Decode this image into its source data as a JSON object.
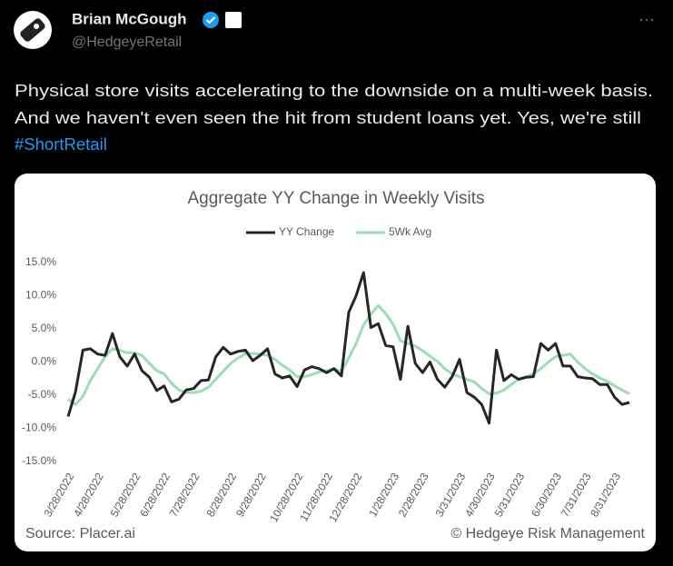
{
  "tweet": {
    "name": "Brian McGough",
    "handle": "@HedgeyeRetail",
    "menu": "···",
    "text_lines": [
      "Physical store visits accelerating to the downside on a multi-week basis.",
      "And we haven't even seen the hit from student loans yet. Yes, we're still"
    ],
    "hashtag": "#ShortRetail"
  },
  "chart_data": {
    "type": "line",
    "title": "Aggregate YY Change in Weekly Visits",
    "source": "Source: Placer.ai",
    "credit": "© Hedgeye Risk Management",
    "categories": [
      "3/28/2022",
      null,
      null,
      null,
      "4/28/2022",
      null,
      null,
      null,
      null,
      "5/28/2022",
      null,
      null,
      null,
      "6/28/2022",
      null,
      null,
      null,
      "7/28/2022",
      null,
      null,
      null,
      null,
      "8/28/2022",
      null,
      null,
      null,
      "9/28/2022",
      null,
      null,
      null,
      null,
      "10/28/2022",
      null,
      null,
      null,
      "11/28/2022",
      null,
      null,
      null,
      "12/28/2022",
      null,
      null,
      null,
      null,
      "1/28/2023",
      null,
      null,
      null,
      "2/28/2023",
      null,
      null,
      null,
      null,
      "3/31/2023",
      null,
      null,
      null,
      "4/30/2023",
      null,
      null,
      null,
      "5/31/2023",
      null,
      null,
      null,
      null,
      "6/30/2023",
      null,
      null,
      null,
      "7/31/2023",
      null,
      null,
      null,
      "8/31/2023",
      null,
      null
    ],
    "series": [
      {
        "name": "YY Change",
        "color": "#262626",
        "values": [
          -8.2,
          -4.5,
          1.8,
          2.0,
          1.2,
          1.0,
          4.3,
          0.8,
          -0.6,
          1.2,
          -1.3,
          -2.3,
          -4.3,
          -3.6,
          -6.0,
          -5.6,
          -4.2,
          -4.0,
          -2.8,
          -2.7,
          0.8,
          2.2,
          1.2,
          1.6,
          1.8,
          0.2,
          1.0,
          2.0,
          -1.8,
          -2.4,
          -2.1,
          -3.7,
          -1.2,
          -0.7,
          -1.0,
          -1.6,
          -1.0,
          -2.1,
          7.5,
          10.0,
          13.5,
          5.2,
          5.8,
          2.5,
          2.3,
          -2.6,
          5.4,
          -0.2,
          -1.6,
          0.0,
          -2.6,
          -3.8,
          -2.2,
          0.4,
          -4.6,
          -5.3,
          -6.4,
          -9.2,
          1.8,
          -2.8,
          -1.9,
          -2.6,
          -2.3,
          -2.2,
          2.8,
          1.8,
          2.8,
          -0.6,
          -0.6,
          -2.2,
          -2.4,
          -2.5,
          -3.4,
          -3.4,
          -5.3,
          -6.4,
          -6.1
        ]
      },
      {
        "name": "5Wk Avg",
        "color": "#9ddcb5",
        "values": [
          -5.6,
          -6.4,
          -5.2,
          -2.8,
          -1.0,
          0.8,
          2.0,
          1.8,
          1.4,
          1.4,
          1.0,
          -0.2,
          -1.3,
          -1.8,
          -3.2,
          -4.2,
          -4.6,
          -4.6,
          -4.4,
          -3.8,
          -2.6,
          -1.4,
          -0.2,
          0.6,
          1.2,
          1.3,
          1.2,
          1.0,
          0.4,
          -0.5,
          -1.2,
          -2.2,
          -2.2,
          -1.9,
          -1.5,
          -1.3,
          -1.0,
          -1.4,
          0.6,
          2.8,
          5.6,
          7.2,
          8.5,
          7.3,
          5.7,
          3.2,
          2.8,
          2.4,
          1.7,
          0.9,
          0.1,
          -1.0,
          -1.8,
          -2.2,
          -2.6,
          -3.0,
          -4.0,
          -4.8,
          -4.7,
          -4.2,
          -3.4,
          -2.6,
          -2.2,
          -1.8,
          -1.0,
          0.0,
          0.8,
          1.0,
          1.2,
          0.0,
          -1.0,
          -1.8,
          -2.4,
          -2.9,
          -3.6,
          -4.2,
          -4.8
        ]
      }
    ],
    "ylim": [
      -15,
      15
    ],
    "yticks": [
      {
        "value": 15,
        "label": "15.0%"
      },
      {
        "value": 10,
        "label": "10.0%"
      },
      {
        "value": 5,
        "label": "5.0%"
      },
      {
        "value": 0,
        "label": "0.0%"
      },
      {
        "value": -5,
        "label": "-5.0%"
      },
      {
        "value": -10,
        "label": "-10.0%"
      },
      {
        "value": -15,
        "label": "-15.0%"
      }
    ],
    "grid": false,
    "legend": "top"
  }
}
